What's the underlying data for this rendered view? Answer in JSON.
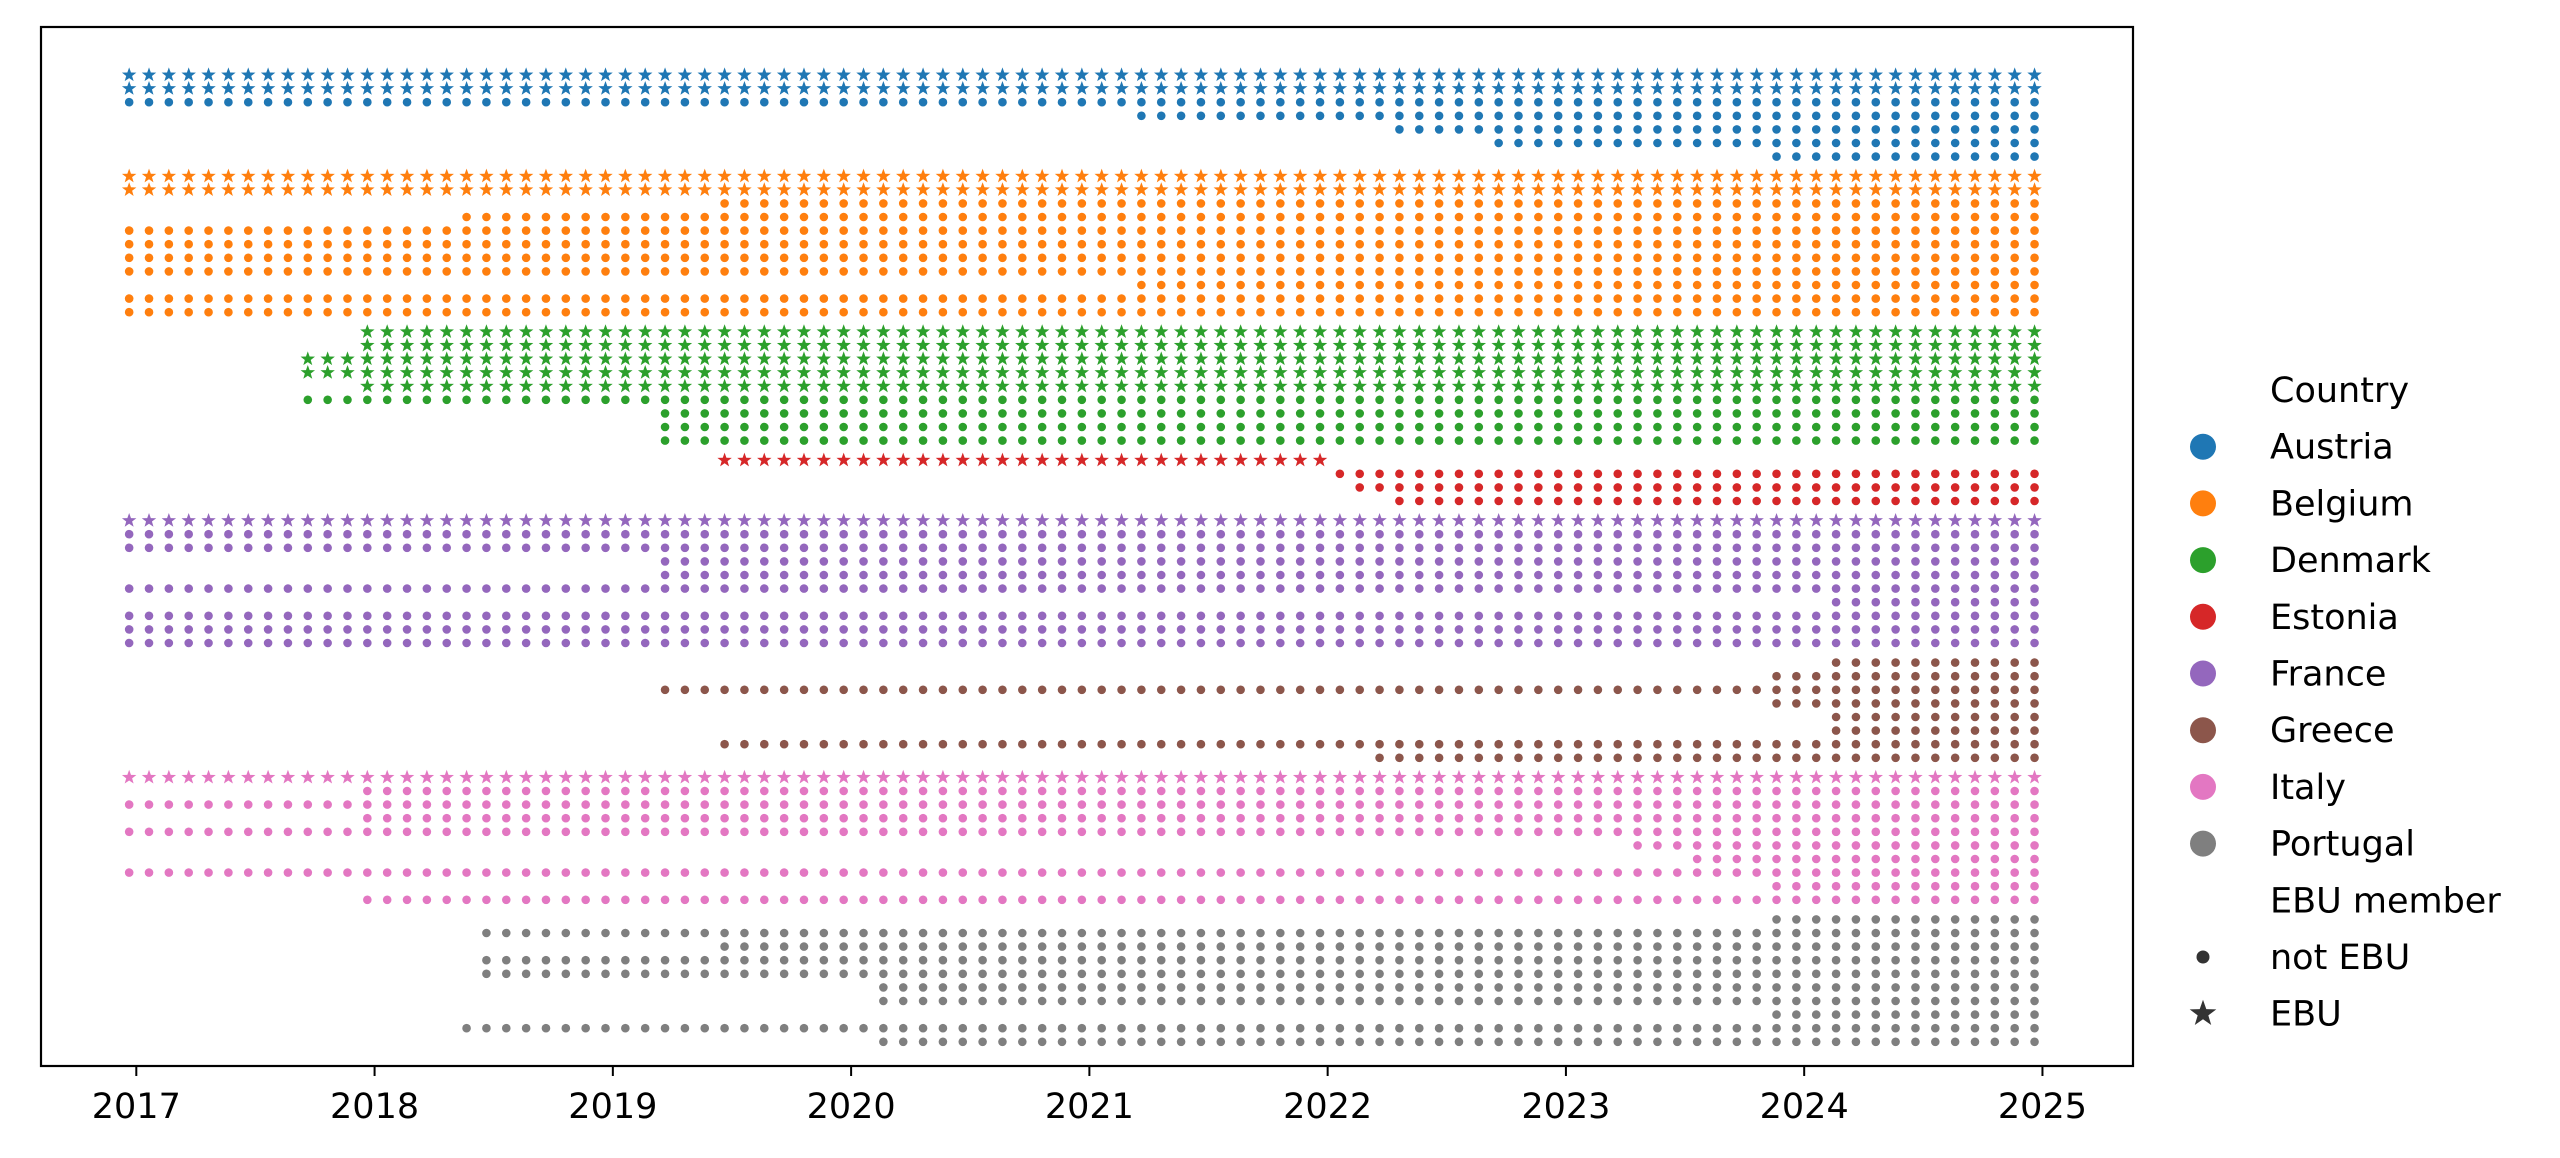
{
  "chart_data": {
    "type": "scatter",
    "title": "",
    "xlabel": "",
    "ylabel": "",
    "xlim": [
      2016.6,
      2025.38
    ],
    "x_ticks": [
      "2017",
      "2018",
      "2019",
      "2020",
      "2021",
      "2022",
      "2023",
      "2024",
      "2025"
    ],
    "x_start": 2016.97,
    "x_end": 2024.94,
    "x_step": 0.0833,
    "grid": false,
    "legend": {
      "position": "right",
      "hue_title": "Country",
      "style_title": "EBU member",
      "style_labels": {
        "dot": "not EBU",
        "star": "EBU"
      }
    },
    "series": [
      {
        "name": "Austria",
        "color": "#1f77b4",
        "rows": [
          {
            "type": "star",
            "start": 2016.97,
            "end": 2024.94
          },
          {
            "type": "star",
            "start": 2016.97,
            "end": 2024.94
          },
          {
            "type": "dot",
            "start": 2016.97,
            "end": 2024.94
          },
          {
            "type": "dot",
            "start": 2021.22,
            "end": 2024.94
          },
          {
            "type": "dot",
            "start": 2022.3,
            "end": 2024.94
          },
          {
            "type": "dot",
            "start": 2022.7,
            "end": 2024.94
          },
          {
            "type": "dot",
            "start": 2023.85,
            "end": 2024.94
          }
        ]
      },
      {
        "name": "Belgium",
        "color": "#ff7f0e",
        "rows": [
          {
            "type": "star",
            "start": 2016.97,
            "end": 2024.94
          },
          {
            "type": "star",
            "start": 2016.97,
            "end": 2024.94
          },
          {
            "type": "dot",
            "start": 2019.45,
            "end": 2024.94
          },
          {
            "type": "dot",
            "start": 2018.38,
            "end": 2024.94
          },
          {
            "type": "dot",
            "start": 2016.97,
            "end": 2024.94
          },
          {
            "type": "dot",
            "start": 2016.97,
            "end": 2024.94
          },
          {
            "type": "dot",
            "start": 2016.97,
            "end": 2024.94
          },
          {
            "type": "dot",
            "start": 2016.97,
            "end": 2024.94
          },
          {
            "type": "dot",
            "start": 2021.22,
            "end": 2024.94
          },
          {
            "type": "dot",
            "start": 2016.97,
            "end": 2024.94
          },
          {
            "type": "dot",
            "start": 2016.97,
            "end": 2024.94
          }
        ]
      },
      {
        "name": "Denmark",
        "color": "#2ca02c",
        "rows": [
          {
            "type": "star",
            "start": 2017.97,
            "end": 2024.94
          },
          {
            "type": "star",
            "start": 2017.97,
            "end": 2024.94
          },
          {
            "type": "star",
            "start": 2017.72,
            "end": 2024.94
          },
          {
            "type": "star",
            "start": 2017.72,
            "end": 2024.94
          },
          {
            "type": "star",
            "start": 2017.97,
            "end": 2024.94
          },
          {
            "type": "dot",
            "start": 2017.72,
            "end": 2024.94
          },
          {
            "type": "dot",
            "start": 2019.2,
            "end": 2024.94
          },
          {
            "type": "dot",
            "start": 2019.2,
            "end": 2024.94
          },
          {
            "type": "dot",
            "start": 2019.2,
            "end": 2024.94
          }
        ]
      },
      {
        "name": "Estonia",
        "color": "#d62728",
        "rows": [
          {
            "type": "star",
            "start": 2019.45,
            "end": 2021.95
          },
          {
            "type": "dot",
            "start": 2022.05,
            "end": 2024.94
          },
          {
            "type": "dot",
            "start": 2022.15,
            "end": 2024.94
          },
          {
            "type": "dot",
            "start": 2022.3,
            "end": 2024.94
          }
        ]
      },
      {
        "name": "France",
        "color": "#9467bd",
        "rows": [
          {
            "type": "star",
            "start": 2016.97,
            "end": 2024.94
          },
          {
            "type": "dot",
            "start": 2016.97,
            "end": 2024.94
          },
          {
            "type": "dot",
            "start": 2016.97,
            "end": 2024.94
          },
          {
            "type": "dot",
            "start": 2019.2,
            "end": 2024.94
          },
          {
            "type": "dot",
            "start": 2019.2,
            "end": 2024.94
          },
          {
            "type": "dot",
            "start": 2016.97,
            "end": 2024.94
          },
          {
            "type": "dot",
            "start": 2024.1,
            "end": 2024.94
          },
          {
            "type": "dot",
            "start": 2016.97,
            "end": 2024.94
          },
          {
            "type": "dot",
            "start": 2016.97,
            "end": 2024.94
          },
          {
            "type": "dot",
            "start": 2016.97,
            "end": 2024.94
          }
        ]
      },
      {
        "name": "Greece",
        "color": "#8c564b",
        "rows": [
          {
            "type": "dot",
            "start": 2024.1,
            "end": 2024.94
          },
          {
            "type": "dot",
            "start": 2023.85,
            "end": 2024.94
          },
          {
            "type": "dot",
            "start": 2019.2,
            "end": 2024.94
          },
          {
            "type": "dot",
            "start": 2023.85,
            "end": 2024.94
          },
          {
            "type": "dot",
            "start": 2024.1,
            "end": 2024.94
          },
          {
            "type": "dot",
            "start": 2024.1,
            "end": 2024.94
          },
          {
            "type": "dot",
            "start": 2019.45,
            "end": 2024.94
          },
          {
            "type": "dot",
            "start": 2022.2,
            "end": 2024.94
          }
        ]
      },
      {
        "name": "Italy",
        "color": "#e377c2",
        "rows": [
          {
            "type": "star",
            "start": 2016.97,
            "end": 2024.94
          },
          {
            "type": "dot",
            "start": 2017.97,
            "end": 2024.94
          },
          {
            "type": "dot",
            "start": 2016.97,
            "end": 2024.94
          },
          {
            "type": "dot",
            "start": 2017.97,
            "end": 2024.94
          },
          {
            "type": "dot",
            "start": 2016.97,
            "end": 2024.94
          },
          {
            "type": "dot",
            "start": 2023.3,
            "end": 2024.94
          },
          {
            "type": "dot",
            "start": 2023.55,
            "end": 2024.94
          },
          {
            "type": "dot",
            "start": 2016.97,
            "end": 2024.94
          },
          {
            "type": "dot",
            "start": 2023.85,
            "end": 2024.94
          },
          {
            "type": "dot",
            "start": 2017.97,
            "end": 2024.94
          }
        ]
      },
      {
        "name": "Portugal",
        "color": "#7f7f7f",
        "rows": [
          {
            "type": "dot",
            "start": 2023.85,
            "end": 2024.94
          },
          {
            "type": "dot",
            "start": 2018.45,
            "end": 2024.94
          },
          {
            "type": "dot",
            "start": 2019.45,
            "end": 2024.94
          },
          {
            "type": "dot",
            "start": 2018.45,
            "end": 2024.94
          },
          {
            "type": "dot",
            "start": 2018.45,
            "end": 2024.94
          },
          {
            "type": "dot",
            "start": 2020.1,
            "end": 2024.94
          },
          {
            "type": "dot",
            "start": 2020.1,
            "end": 2024.94
          },
          {
            "type": "dot",
            "start": 2023.85,
            "end": 2024.94
          },
          {
            "type": "dot",
            "start": 2018.38,
            "end": 2024.94
          },
          {
            "type": "dot",
            "start": 2020.1,
            "end": 2024.94
          }
        ]
      }
    ]
  }
}
